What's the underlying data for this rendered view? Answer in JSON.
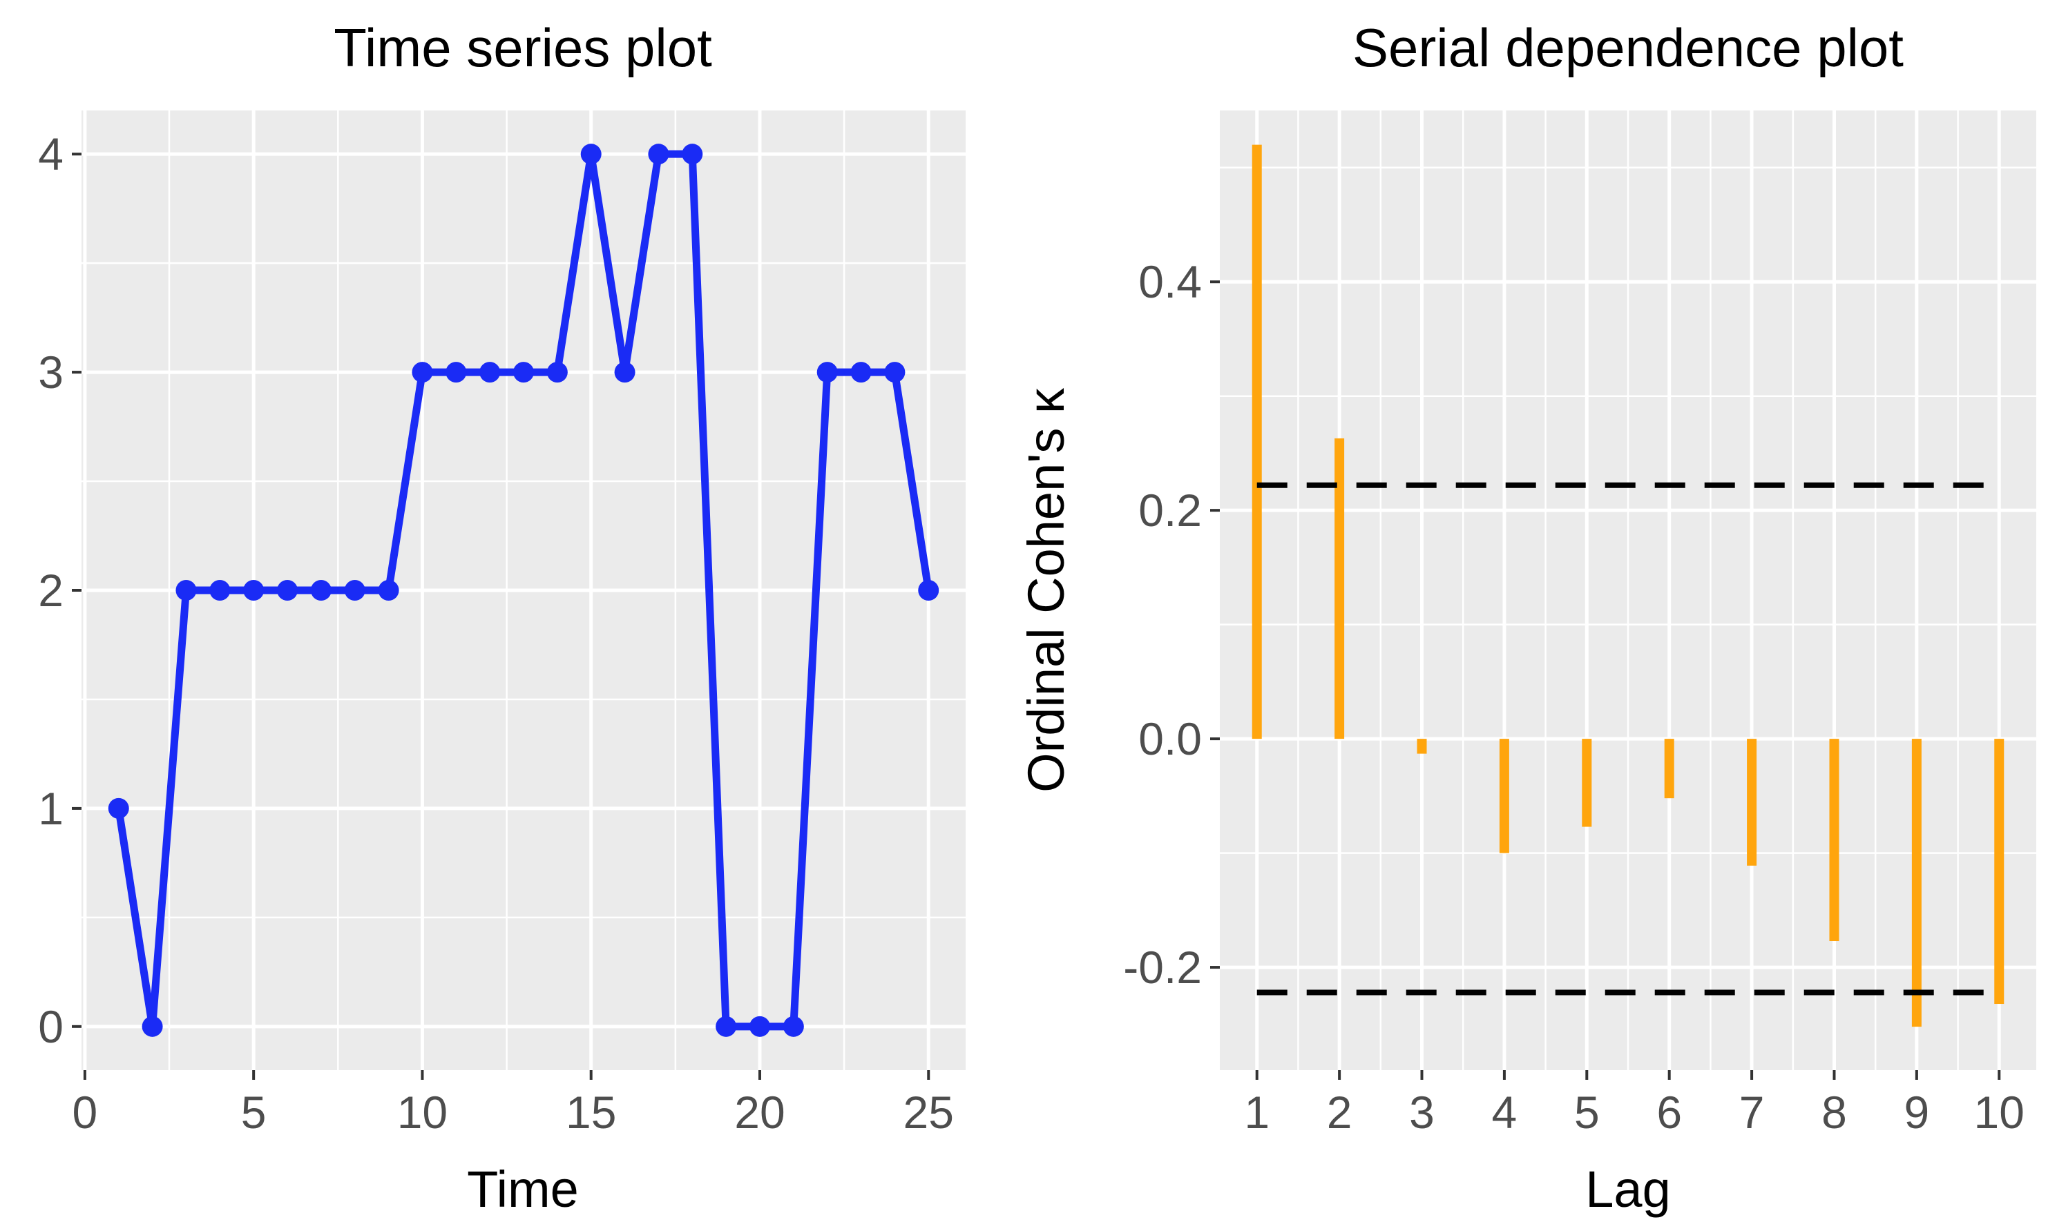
{
  "chart_data": [
    {
      "type": "line",
      "title": "Time series plot",
      "xlabel": "Time",
      "ylabel": "",
      "xlim": [
        -0.1,
        26.1
      ],
      "ylim": [
        -0.2,
        4.2
      ],
      "xticks": [
        0,
        5,
        10,
        15,
        20,
        25
      ],
      "yticks": [
        0,
        1,
        2,
        3,
        4
      ],
      "grid": true,
      "color": "#1a2bf5",
      "series": [
        {
          "x": [
            1,
            2,
            3,
            4,
            5,
            6,
            7,
            8,
            9,
            10,
            11,
            12,
            13,
            14,
            15,
            16,
            17,
            18,
            19,
            20,
            21,
            22,
            23,
            24,
            25
          ],
          "values": [
            1,
            0,
            2,
            2,
            2,
            2,
            2,
            2,
            2,
            3,
            3,
            3,
            3,
            3,
            4,
            3,
            4,
            4,
            0,
            0,
            0,
            3,
            3,
            3,
            2
          ]
        }
      ]
    },
    {
      "type": "bar",
      "title": "Serial dependence plot",
      "xlabel": "Lag",
      "ylabel": "Ordinal Cohen's κ",
      "categories": [
        "1",
        "2",
        "3",
        "4",
        "5",
        "6",
        "7",
        "8",
        "9",
        "10"
      ],
      "values": [
        0.52,
        0.263,
        -0.013,
        -0.1,
        -0.077,
        -0.052,
        -0.111,
        -0.177,
        -0.252,
        -0.232
      ],
      "ylim": [
        -0.29,
        0.55
      ],
      "yticks": [
        -0.2,
        0.0,
        0.2,
        0.4
      ],
      "ytick_labels": [
        "-0.2",
        "0.0",
        "0.2",
        "0.4"
      ],
      "critical_values": [
        0.222,
        -0.222
      ],
      "grid": true,
      "bar_color": "#ffa50d",
      "line_color": "#000000"
    }
  ]
}
